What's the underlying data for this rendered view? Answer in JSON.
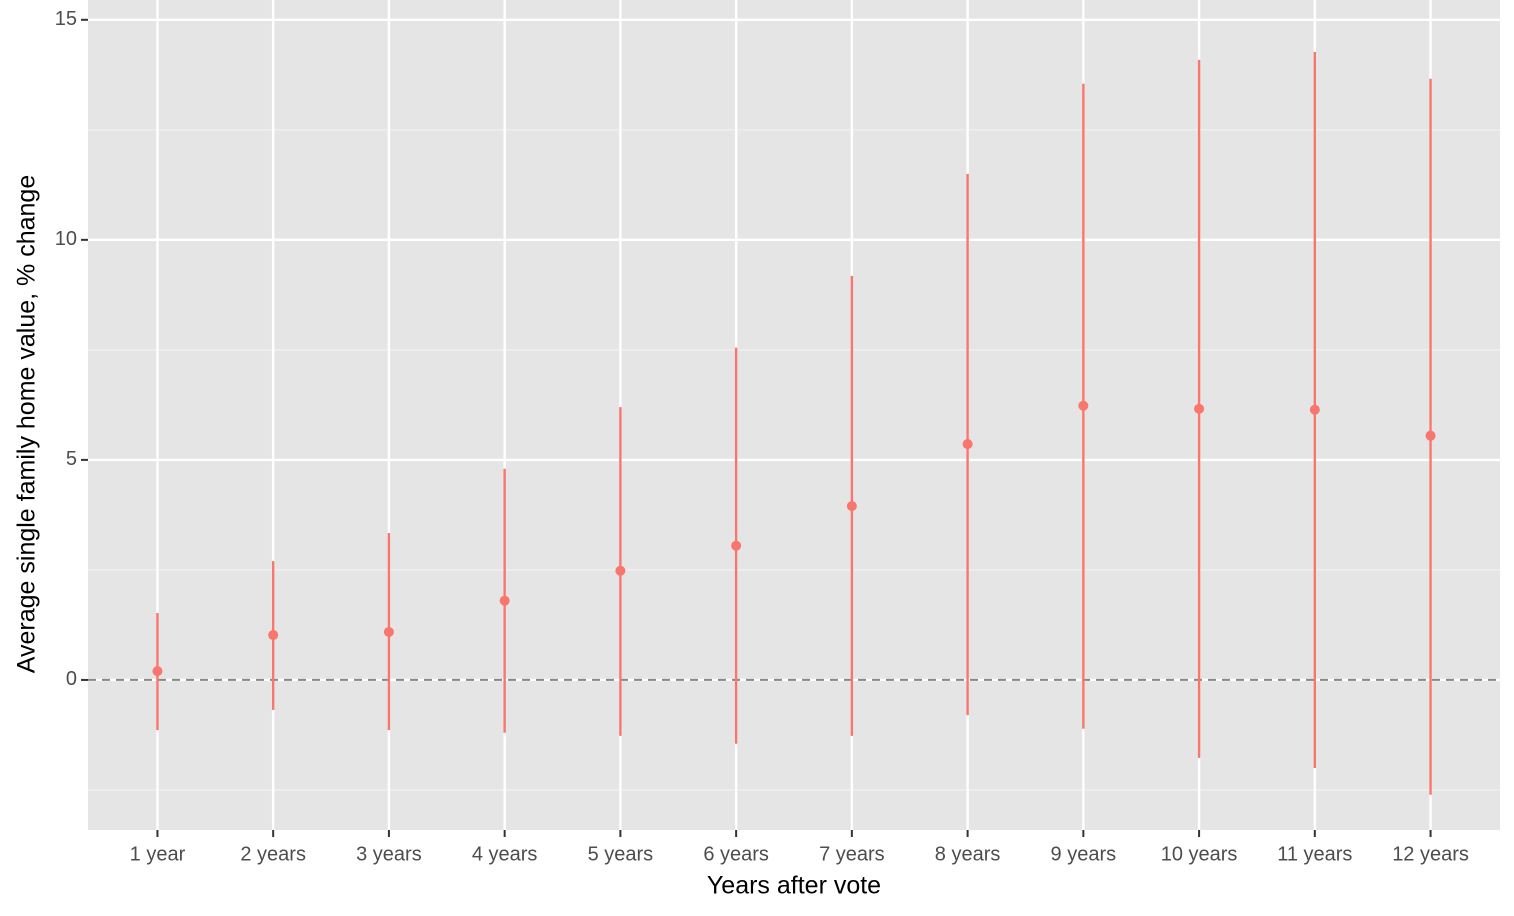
{
  "chart_data": {
    "type": "pointrange",
    "x_label": "Years after vote",
    "y_label": "Average single family home value, % change",
    "categories": [
      "1 year",
      "2 years",
      "3 years",
      "4 years",
      "5 years",
      "6 years",
      "7 years",
      "8 years",
      "9 years",
      "10 years",
      "11 years",
      "12 years"
    ],
    "series": [
      {
        "color": "#f8766d",
        "values": [
          0.2,
          1.02,
          1.09,
          1.8,
          2.48,
          3.05,
          3.95,
          5.36,
          6.23,
          6.16,
          6.14,
          5.55
        ],
        "lower": [
          -1.14,
          -0.68,
          -1.14,
          -1.2,
          -1.27,
          -1.45,
          -1.27,
          -0.8,
          -1.11,
          -1.77,
          -2.0,
          -2.61
        ],
        "upper": [
          1.52,
          2.7,
          3.34,
          4.8,
          6.2,
          7.55,
          9.18,
          11.5,
          13.55,
          14.09,
          14.27,
          13.66
        ]
      }
    ],
    "ylim": [
      -3.41,
      15.45
    ],
    "yticks": [
      0,
      5,
      10,
      15
    ],
    "minor_yticks": [
      -2.5,
      2.5,
      7.5,
      12.5
    ],
    "hline": 0,
    "grid": true
  }
}
